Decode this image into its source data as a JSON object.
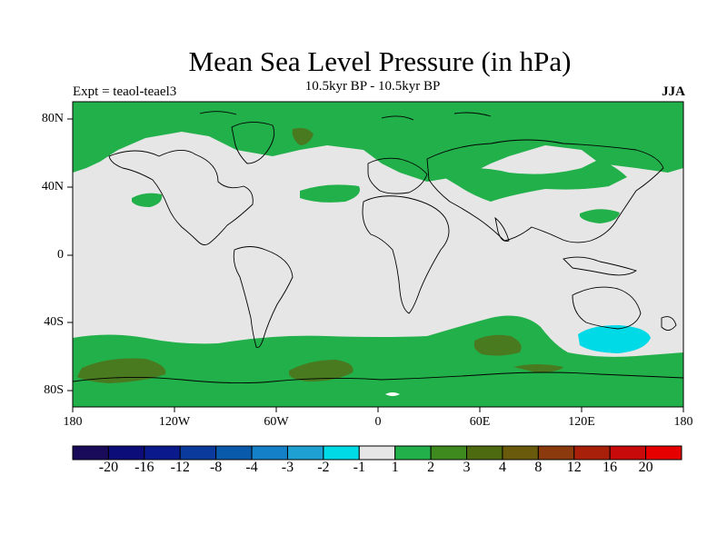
{
  "title": "Mean Sea Level Pressure (in hPa)",
  "subtitle": "10.5kyr BP - 10.5kyr BP",
  "left_label": "Expt = teaol-teael3",
  "right_label": "JJA",
  "lat_labels": [
    "80N",
    "40N",
    "0",
    "40S",
    "80S"
  ],
  "lon_labels": [
    "180",
    "120W",
    "60W",
    "0",
    "60E",
    "120E",
    "180"
  ],
  "colorbar": {
    "labels": [
      "-20",
      "-16",
      "-12",
      "-8",
      "-4",
      "-3",
      "-2",
      "-1",
      "1",
      "2",
      "3",
      "4",
      "8",
      "12",
      "16",
      "20"
    ],
    "colors": [
      "#1a0a5a",
      "#0d0d7a",
      "#0a1a8c",
      "#0a3a9c",
      "#0a5aac",
      "#1480c8",
      "#1ea0d2",
      "#00d9e6",
      "#e6e6e6",
      "#22b04a",
      "#3f8a1e",
      "#4e6a10",
      "#6a5a0c",
      "#8a3a0c",
      "#a8200a",
      "#c80a0a",
      "#e60000"
    ]
  },
  "map_colors": {
    "neutral": "#e6e6e6",
    "pos_1_2": "#22b04a",
    "pos_2_3": "#4a7a20",
    "neg_2_1": "#00d9e6",
    "coast": "#000000"
  }
}
